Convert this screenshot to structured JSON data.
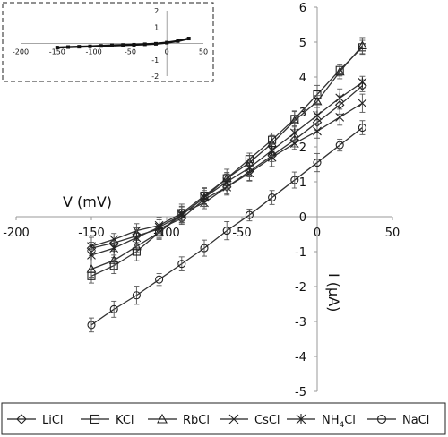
{
  "chart_data": [
    {
      "type": "line",
      "title": "",
      "xlabel": "V (mV)",
      "ylabel": "I (μA)",
      "xlim": [
        -200,
        50
      ],
      "ylim": [
        -5,
        6
      ],
      "x_ticks": [
        "-200",
        "-150",
        "-100",
        "-50",
        "0",
        "50"
      ],
      "y_ticks": [
        "-5",
        "-4",
        "-3",
        "-2",
        "-1",
        "0",
        "1",
        "2",
        "3",
        "4",
        "5",
        "6"
      ],
      "grid": false,
      "legend_position": "bottom",
      "x": [
        -150,
        -135,
        -120,
        -105,
        -90,
        -75,
        -60,
        -45,
        -30,
        -15,
        0,
        15,
        30
      ],
      "series": [
        {
          "name": "LiCl",
          "marker": "diamond",
          "values": [
            -0.9,
            -0.75,
            -0.55,
            -0.35,
            -0.05,
            0.5,
            0.85,
            1.3,
            1.75,
            2.2,
            2.7,
            3.2,
            3.75
          ]
        },
        {
          "name": "KCl",
          "marker": "square",
          "values": [
            -1.7,
            -1.4,
            -1.0,
            -0.45,
            0.1,
            0.6,
            1.1,
            1.65,
            2.2,
            2.8,
            3.5,
            4.2,
            4.85
          ]
        },
        {
          "name": "RbCl",
          "marker": "triangle",
          "values": [
            -1.5,
            -1.25,
            -0.85,
            -0.45,
            0.05,
            0.55,
            1.1,
            1.55,
            2.1,
            2.75,
            3.3,
            4.15,
            4.9
          ]
        },
        {
          "name": "CsCl",
          "marker": "x",
          "values": [
            -0.85,
            -0.65,
            -0.4,
            -0.25,
            0.1,
            0.4,
            0.85,
            1.25,
            1.7,
            2.1,
            2.45,
            2.85,
            3.25
          ]
        },
        {
          "name": "NH4Cl",
          "marker": "asterisk",
          "values": [
            -1.1,
            -0.9,
            -0.6,
            -0.3,
            0.05,
            0.55,
            1.0,
            1.4,
            1.9,
            2.4,
            2.9,
            3.4,
            3.85
          ]
        },
        {
          "name": "NaCl",
          "marker": "circle",
          "values": [
            -3.1,
            -2.65,
            -2.25,
            -1.8,
            -1.35,
            -0.9,
            -0.4,
            0.05,
            0.55,
            1.05,
            1.55,
            2.05,
            2.55
          ]
        }
      ],
      "legend": [
        {
          "label": "LiCl",
          "marker": "diamond"
        },
        {
          "label": "KCl",
          "marker": "square"
        },
        {
          "label": "RbCl",
          "marker": "triangle"
        },
        {
          "label": "CsCl",
          "marker": "x"
        },
        {
          "label": "NH",
          "sub": "4",
          "label_rest": "Cl",
          "marker": "asterisk"
        },
        {
          "label": "NaCl",
          "marker": "circle"
        }
      ]
    },
    {
      "type": "line",
      "title": "",
      "xlim": [
        -200,
        50
      ],
      "ylim": [
        -2,
        2
      ],
      "x_ticks": [
        "-200",
        "-150",
        "-100",
        "-50",
        "0",
        "50"
      ],
      "y_ticks": [
        "2",
        "1",
        "-1",
        "-2"
      ],
      "x": [
        -150,
        -135,
        -120,
        -105,
        -90,
        -75,
        -60,
        -45,
        -30,
        -15,
        0,
        15,
        30
      ],
      "values": [
        -0.25,
        -0.22,
        -0.2,
        -0.18,
        -0.15,
        -0.12,
        -0.1,
        -0.08,
        -0.05,
        -0.02,
        0.05,
        0.15,
        0.3
      ]
    }
  ]
}
